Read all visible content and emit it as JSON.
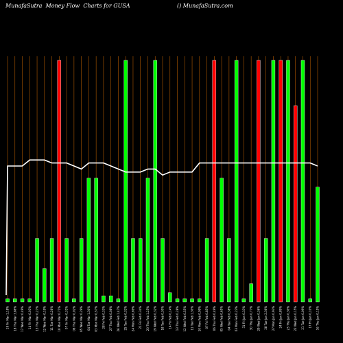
{
  "chart_data": {
    "type": "bar",
    "title": "MunafaSutra  Money Flow  Charts for GUSA",
    "watermark": "() MunafaSutra.com",
    "ylim": [
      0,
      100
    ],
    "grid": true,
    "colors": {
      "background": "#000000",
      "grid": "#b35a00",
      "up": "#00ff00",
      "down": "#ff0000",
      "line": "#ffffff"
    },
    "categories": [
      "19 Fri Mar 1.18%",
      "18 Thu Mar 3.86%",
      "17 Wed Mar 0.49%",
      "14 Fri Mar 0.01%",
      "13 Thu Mar 0.27%",
      "12 Wed Mar 0.19%",
      "11 Tue Mar 0.26%",
      "10 Mon Mar 0.71%",
      "07 Fri Mar 0.31%",
      "06 Thu Mar 0.02%",
      "05 Wed Mar 0.29%",
      "04 Tue Mar 1.30%",
      "03 Mon Mar 0.57%",
      "28 Fri Feb 0.33%",
      "27 Thu Feb 0.08%",
      "26 Wed Feb 1.47%",
      "25 Tue Feb 0.32%",
      "24 Mon Feb 0.69%",
      "21 Fri Feb 0.34%",
      "20 Thu Feb 1.25%",
      "19 Wed Feb 0.32%",
      "18 Tue Feb 0.30%",
      "14 Fri Feb 0.14%",
      "13 Thu Feb 0.28%",
      "12 Wed Feb 0.55%",
      "11 Tue Feb 1.30%",
      "10 Mon Feb 0.09%",
      "07 Fri Feb 0.85%",
      "06 Thu Feb 0.49%",
      "05 Wed Feb 0.65%",
      "04 Tue Feb 0.38%",
      "03 Mon Feb 0.23%",
      "31 Fri Jan 0.33%",
      "30 Thu Jan 0.77%",
      "29 Wed Jan 0.36%",
      "28 Tue Jan 2.36%",
      "27 Mon Jan 0.93%",
      "24 Fri Jan 0.89%",
      "23 Thu Jan 0.30%",
      "22 Wed Jan 0.15%",
      "21 Tue Jan 0.09%",
      "17 Fri Jan 0.10%",
      "16 Thu Jan 0.15%"
    ],
    "series": [
      {
        "type": "bar",
        "values": [
          1,
          1,
          1,
          1,
          21,
          11,
          21,
          80,
          21,
          1,
          21,
          41,
          41,
          2,
          2,
          1,
          80,
          21,
          21,
          41,
          80,
          21,
          3,
          1,
          1,
          1,
          1,
          21,
          80,
          41,
          21,
          80,
          1,
          6,
          80,
          21,
          80,
          80,
          80,
          65,
          80,
          1,
          38
        ],
        "colors": [
          "up",
          "up",
          "up",
          "up",
          "up",
          "up",
          "up",
          "down",
          "up",
          "up",
          "up",
          "up",
          "up",
          "up",
          "up",
          "up",
          "up",
          "up",
          "up",
          "up",
          "up",
          "up",
          "up",
          "up",
          "up",
          "up",
          "up",
          "up",
          "down",
          "up",
          "up",
          "up",
          "up",
          "up",
          "down",
          "up",
          "up",
          "down",
          "up",
          "down",
          "up",
          "up",
          "up"
        ]
      },
      {
        "type": "line",
        "values": [
          45,
          45,
          45,
          47,
          47,
          47,
          46,
          46,
          46,
          45,
          44,
          46,
          46,
          46,
          45,
          44,
          43,
          43,
          43,
          44,
          44,
          42,
          43,
          43,
          43,
          43,
          46,
          46,
          46,
          46,
          46,
          46,
          46,
          46,
          46,
          46,
          46,
          46,
          46,
          46,
          46,
          46,
          45
        ]
      }
    ]
  }
}
